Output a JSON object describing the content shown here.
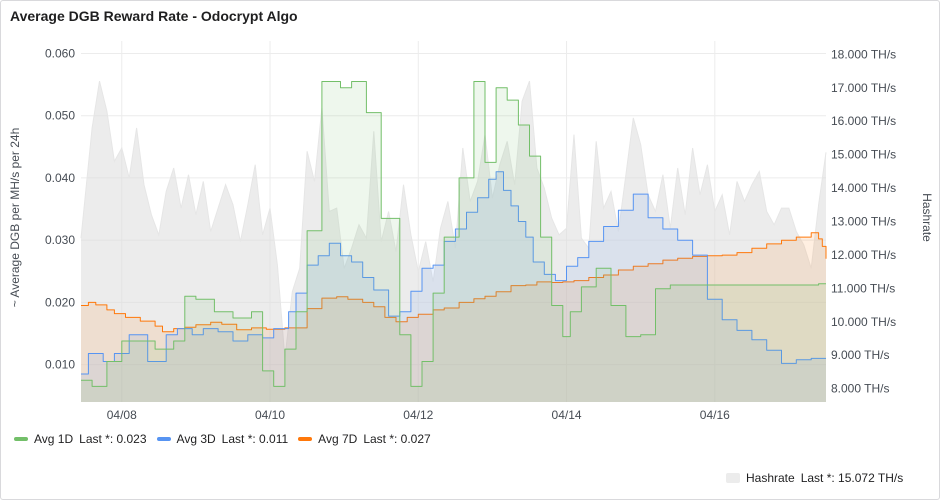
{
  "panel": {
    "title": "Average DGB Reward Rate - Odocrypt Algo"
  },
  "colors": {
    "avg1d": "#73bf69",
    "avg3d": "#5794f2",
    "avg7d": "#ff780a",
    "hashrate": "#cfcfcf",
    "grid": "#ececec",
    "text": "#464c54"
  },
  "legend": {
    "items": [
      {
        "key": "avg1d",
        "name": "Avg 1D",
        "stat": "Last *: 0.023"
      },
      {
        "key": "avg3d",
        "name": "Avg 3D",
        "stat": "Last *: 0.011"
      },
      {
        "key": "avg7d",
        "name": "Avg 7D",
        "stat": "Last *: 0.027"
      }
    ],
    "right_item": {
      "key": "hashrate",
      "name": "Hashrate",
      "stat": "Last *: 15.072 TH/s"
    }
  },
  "chart_data": {
    "type": "line",
    "title": "Average DGB Reward Rate - Odocrypt Algo",
    "ylabel_left": "~ Average DGB per MH/s per 24h",
    "ylabel_right": "Hashrate",
    "x_range": [
      7.45,
      17.5
    ],
    "x_ticks": [
      {
        "v": 8,
        "label": "04/08"
      },
      {
        "v": 10,
        "label": "04/10"
      },
      {
        "v": 12,
        "label": "04/12"
      },
      {
        "v": 14,
        "label": "04/14"
      },
      {
        "v": 16,
        "label": "04/16"
      }
    ],
    "ylim_left": [
      0.004,
      0.062
    ],
    "y_ticks_left": [
      {
        "v": 0.06,
        "label": "0.060"
      },
      {
        "v": 0.05,
        "label": "0.050"
      },
      {
        "v": 0.04,
        "label": "0.040"
      },
      {
        "v": 0.03,
        "label": "0.030"
      },
      {
        "v": 0.02,
        "label": "0.020"
      },
      {
        "v": 0.01,
        "label": "0.010"
      }
    ],
    "ylim_right": [
      7.6,
      18.4
    ],
    "y_ticks_right": [
      {
        "v": 18,
        "label": "18.000 TH/s"
      },
      {
        "v": 17,
        "label": "17.000 TH/s"
      },
      {
        "v": 16,
        "label": "16.000 TH/s"
      },
      {
        "v": 15,
        "label": "15.000 TH/s"
      },
      {
        "v": 14,
        "label": "14.000 TH/s"
      },
      {
        "v": 13,
        "label": "13.000 TH/s"
      },
      {
        "v": 12,
        "label": "12.000 TH/s"
      },
      {
        "v": 11,
        "label": "11.000 TH/s"
      },
      {
        "v": 10,
        "label": "10.000 TH/s"
      },
      {
        "v": 9,
        "label": "9.000 TH/s"
      },
      {
        "v": 8,
        "label": "8.000 TH/s"
      }
    ],
    "grid": true,
    "legend_position": "bottom",
    "series": [
      {
        "name": "Hashrate",
        "key": "hashrate",
        "axis": "right",
        "style": "area",
        "x": [
          7.45,
          7.6,
          7.7,
          7.8,
          7.9,
          8.0,
          8.1,
          8.2,
          8.3,
          8.4,
          8.5,
          8.6,
          8.7,
          8.8,
          8.9,
          9.0,
          9.1,
          9.2,
          9.3,
          9.4,
          9.5,
          9.6,
          9.7,
          9.8,
          9.9,
          10.0,
          10.1,
          10.2,
          10.3,
          10.4,
          10.5,
          10.6,
          10.7,
          10.8,
          10.9,
          11.0,
          11.1,
          11.2,
          11.3,
          11.4,
          11.5,
          11.6,
          11.7,
          11.8,
          11.9,
          12.0,
          12.1,
          12.2,
          12.3,
          12.4,
          12.5,
          12.6,
          12.7,
          12.8,
          12.9,
          13.0,
          13.1,
          13.2,
          13.3,
          13.4,
          13.5,
          13.6,
          13.7,
          13.8,
          13.9,
          14.0,
          14.1,
          14.2,
          14.3,
          14.4,
          14.5,
          14.6,
          14.7,
          14.8,
          14.9,
          15.0,
          15.1,
          15.2,
          15.3,
          15.4,
          15.5,
          15.6,
          15.7,
          15.8,
          15.9,
          16.0,
          16.1,
          16.2,
          16.3,
          16.4,
          16.5,
          16.6,
          16.7,
          16.8,
          16.9,
          17.0,
          17.1,
          17.2,
          17.3,
          17.4,
          17.5
        ],
        "values": [
          12.5,
          15.8,
          17.2,
          16.3,
          14.8,
          15.2,
          14.3,
          15.8,
          14.1,
          13.2,
          12.6,
          13.9,
          14.6,
          13.4,
          14.4,
          13.2,
          14.2,
          12.7,
          13.4,
          14.1,
          13.5,
          12.4,
          13.5,
          14.7,
          12.6,
          13.4,
          11.7,
          8.9,
          10.9,
          11.6,
          15.1,
          14.2,
          16.4,
          13.3,
          13.4,
          11.6,
          12.2,
          12.9,
          12.5,
          15.7,
          12.4,
          13.3,
          12.1,
          14.1,
          12.6,
          11.5,
          12.4,
          11.2,
          12.8,
          13.6,
          12.2,
          15.2,
          13.6,
          14.2,
          15.6,
          13.7,
          14.7,
          15.4,
          14.1,
          16.6,
          17.2,
          14.6,
          14.0,
          13.1,
          12.6,
          12.8,
          15.6,
          12.5,
          12.2,
          15.4,
          13.4,
          13.9,
          12.7,
          14.4,
          16.1,
          15.3,
          13.8,
          13.3,
          14.4,
          12.8,
          14.6,
          13.2,
          15.2,
          13.8,
          14.7,
          13.3,
          13.8,
          12.6,
          14.2,
          13.6,
          14.1,
          14.5,
          13.3,
          12.9,
          13.4,
          13.4,
          12.7,
          12.3,
          11.6,
          13.5,
          15.07
        ]
      },
      {
        "name": "Avg 7D",
        "key": "avg7d",
        "axis": "left",
        "style": "step",
        "x": [
          7.45,
          7.55,
          7.65,
          7.8,
          7.9,
          8.05,
          8.25,
          8.45,
          8.55,
          8.7,
          8.85,
          9.0,
          9.2,
          9.35,
          9.55,
          9.75,
          9.95,
          10.2,
          10.5,
          10.7,
          10.9,
          11.05,
          11.25,
          11.4,
          11.55,
          11.7,
          11.85,
          12.0,
          12.2,
          12.35,
          12.55,
          12.75,
          12.9,
          13.05,
          13.25,
          13.45,
          13.6,
          13.8,
          13.95,
          14.1,
          14.3,
          14.5,
          14.7,
          14.9,
          15.1,
          15.3,
          15.5,
          15.7,
          15.9,
          16.1,
          16.3,
          16.5,
          16.7,
          16.9,
          17.1,
          17.3,
          17.4,
          17.45,
          17.5
        ],
        "values": [
          0.0195,
          0.02,
          0.0196,
          0.0188,
          0.0182,
          0.0176,
          0.017,
          0.0162,
          0.0153,
          0.0158,
          0.016,
          0.0164,
          0.0168,
          0.0165,
          0.0156,
          0.0159,
          0.0157,
          0.0159,
          0.019,
          0.0207,
          0.0209,
          0.0205,
          0.02,
          0.0193,
          0.0176,
          0.0169,
          0.0176,
          0.0181,
          0.0188,
          0.0191,
          0.02,
          0.0206,
          0.021,
          0.0217,
          0.0227,
          0.0228,
          0.0233,
          0.0232,
          0.0233,
          0.0235,
          0.024,
          0.0244,
          0.0252,
          0.0258,
          0.0262,
          0.0268,
          0.0271,
          0.0274,
          0.0275,
          0.0276,
          0.028,
          0.0287,
          0.0294,
          0.03,
          0.0305,
          0.0312,
          0.0302,
          0.029,
          0.027
        ]
      },
      {
        "name": "Avg 3D",
        "key": "avg3d",
        "axis": "left",
        "style": "step",
        "x": [
          7.45,
          7.55,
          7.75,
          7.9,
          8.1,
          8.35,
          8.6,
          8.75,
          8.95,
          9.1,
          9.3,
          9.5,
          9.7,
          9.9,
          10.05,
          10.25,
          10.35,
          10.5,
          10.65,
          10.8,
          10.95,
          11.1,
          11.25,
          11.4,
          11.6,
          11.75,
          11.9,
          12.05,
          12.2,
          12.35,
          12.5,
          12.65,
          12.8,
          12.95,
          13.05,
          13.15,
          13.25,
          13.35,
          13.45,
          13.55,
          13.7,
          13.85,
          14.0,
          14.15,
          14.3,
          14.5,
          14.7,
          14.9,
          15.1,
          15.3,
          15.5,
          15.7,
          15.9,
          16.1,
          16.3,
          16.5,
          16.7,
          16.9,
          17.1,
          17.3,
          17.5
        ],
        "values": [
          0.0085,
          0.0118,
          0.0105,
          0.0118,
          0.0148,
          0.0105,
          0.0148,
          0.0158,
          0.0148,
          0.0158,
          0.0153,
          0.0138,
          0.0148,
          0.0143,
          0.0158,
          0.0185,
          0.0215,
          0.026,
          0.0275,
          0.0295,
          0.0275,
          0.0265,
          0.024,
          0.022,
          0.0178,
          0.0185,
          0.0218,
          0.0255,
          0.026,
          0.0298,
          0.0318,
          0.0345,
          0.0368,
          0.0398,
          0.041,
          0.038,
          0.0355,
          0.033,
          0.0305,
          0.0265,
          0.0245,
          0.0235,
          0.0258,
          0.0272,
          0.0298,
          0.0322,
          0.0348,
          0.0374,
          0.0336,
          0.0318,
          0.03,
          0.0276,
          0.0205,
          0.0172,
          0.0155,
          0.014,
          0.0123,
          0.0102,
          0.0108,
          0.011,
          0.011
        ]
      },
      {
        "name": "Avg 1D",
        "key": "avg1d",
        "axis": "left",
        "style": "step",
        "x": [
          7.45,
          7.6,
          7.8,
          8.0,
          8.2,
          8.45,
          8.7,
          8.85,
          9.0,
          9.25,
          9.5,
          9.75,
          9.9,
          10.05,
          10.2,
          10.35,
          10.5,
          10.7,
          10.95,
          11.1,
          11.3,
          11.5,
          11.75,
          11.9,
          12.05,
          12.2,
          12.35,
          12.55,
          12.75,
          12.9,
          13.05,
          13.2,
          13.35,
          13.5,
          13.65,
          13.8,
          13.95,
          14.05,
          14.2,
          14.4,
          14.6,
          14.8,
          15.0,
          15.2,
          15.4,
          15.6,
          15.8,
          16.0,
          16.2,
          16.4,
          16.6,
          16.8,
          17.0,
          17.2,
          17.4,
          17.5
        ],
        "values": [
          0.0075,
          0.0065,
          0.0105,
          0.0138,
          0.0138,
          0.0125,
          0.0138,
          0.021,
          0.0205,
          0.0185,
          0.0175,
          0.0185,
          0.009,
          0.0065,
          0.0125,
          0.0185,
          0.0315,
          0.0555,
          0.0545,
          0.0555,
          0.0505,
          0.0335,
          0.0148,
          0.0065,
          0.0105,
          0.0215,
          0.0305,
          0.04,
          0.0555,
          0.0425,
          0.0545,
          0.0525,
          0.0485,
          0.0435,
          0.0305,
          0.0195,
          0.0145,
          0.0185,
          0.0225,
          0.0255,
          0.0195,
          0.0145,
          0.0148,
          0.0222,
          0.0228,
          0.0228,
          0.0228,
          0.0228,
          0.0228,
          0.0228,
          0.0228,
          0.0228,
          0.0228,
          0.0228,
          0.023,
          0.023
        ]
      }
    ]
  }
}
